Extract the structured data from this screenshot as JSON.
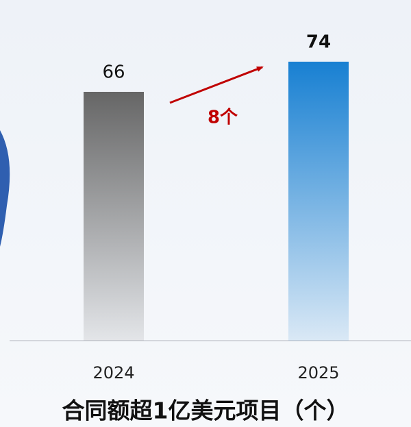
{
  "chart_data": {
    "type": "bar",
    "title": "合同额超1亿美元项目（个）",
    "categories": [
      "2024",
      "2025"
    ],
    "values": [
      66,
      74
    ],
    "colors": [
      "#666666",
      "#1880d2"
    ],
    "annotation": "8个"
  }
}
